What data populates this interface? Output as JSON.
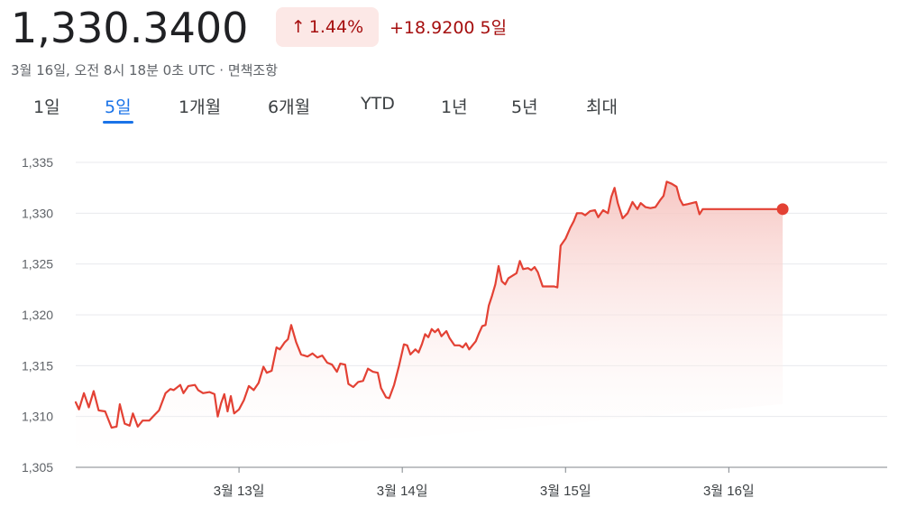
{
  "header": {
    "price": "1,330.3400",
    "pct_change": "1.44%",
    "pct_arrow_icon": "arrow-up-icon",
    "abs_change": "+18.9200",
    "period_label": "5일",
    "meta_text": "3월 16일, 오전 8시 18분 0초 UTC · 면책조항"
  },
  "tabs": [
    {
      "label": "1일",
      "active": false
    },
    {
      "label": "5일",
      "active": true
    },
    {
      "label": "1개월",
      "active": false
    },
    {
      "label": "6개월",
      "active": false
    },
    {
      "label": "YTD",
      "active": false
    },
    {
      "label": "1년",
      "active": false
    },
    {
      "label": "5년",
      "active": false
    },
    {
      "label": "최대",
      "active": false
    }
  ],
  "colors": {
    "line": "#e34134",
    "fill_top": "#f6c4c0",
    "accent": "#1a73e8",
    "negative_text": "#a50e0e"
  },
  "chart_data": {
    "type": "area",
    "title": "",
    "xlabel": "",
    "ylabel": "",
    "ylim": [
      1305,
      1335
    ],
    "yticks": [
      1305,
      1310,
      1315,
      1320,
      1325,
      1330,
      1335
    ],
    "ytick_labels": [
      "1,305",
      "1,310",
      "1,315",
      "1,320",
      "1,325",
      "1,330",
      "1,335"
    ],
    "x_tick_positions": [
      1,
      2,
      3,
      4
    ],
    "x_tick_labels": [
      "3월 13일",
      "3월 14일",
      "3월 15일",
      "3월 16일"
    ],
    "grid": true,
    "last_point_marker": true,
    "series": [
      {
        "values": [
          [
            0.0,
            1311.4
          ],
          [
            0.02,
            1310.7
          ],
          [
            0.05,
            1312.3
          ],
          [
            0.08,
            1310.9
          ],
          [
            0.11,
            1312.5
          ],
          [
            0.14,
            1310.6
          ],
          [
            0.18,
            1310.5
          ],
          [
            0.22,
            1308.9
          ],
          [
            0.25,
            1309.0
          ],
          [
            0.27,
            1311.2
          ],
          [
            0.3,
            1309.3
          ],
          [
            0.33,
            1309.1
          ],
          [
            0.35,
            1310.3
          ],
          [
            0.38,
            1309.0
          ],
          [
            0.41,
            1309.6
          ],
          [
            0.45,
            1309.6
          ],
          [
            0.48,
            1310.1
          ],
          [
            0.51,
            1310.6
          ],
          [
            0.55,
            1312.3
          ],
          [
            0.58,
            1312.7
          ],
          [
            0.6,
            1312.6
          ],
          [
            0.64,
            1313.1
          ],
          [
            0.66,
            1312.3
          ],
          [
            0.69,
            1313.0
          ],
          [
            0.73,
            1313.1
          ],
          [
            0.75,
            1312.6
          ],
          [
            0.78,
            1312.3
          ],
          [
            0.82,
            1312.4
          ],
          [
            0.85,
            1312.2
          ],
          [
            0.87,
            1310.0
          ],
          [
            0.89,
            1311.3
          ],
          [
            0.91,
            1312.2
          ],
          [
            0.93,
            1310.5
          ],
          [
            0.95,
            1312.0
          ],
          [
            0.97,
            1310.3
          ],
          [
            1.0,
            1310.7
          ],
          [
            1.03,
            1311.6
          ],
          [
            1.06,
            1313.0
          ],
          [
            1.09,
            1312.6
          ],
          [
            1.12,
            1313.3
          ],
          [
            1.15,
            1314.9
          ],
          [
            1.17,
            1314.3
          ],
          [
            1.2,
            1314.5
          ],
          [
            1.23,
            1316.8
          ],
          [
            1.25,
            1316.6
          ],
          [
            1.28,
            1317.3
          ],
          [
            1.3,
            1317.6
          ],
          [
            1.32,
            1319.0
          ],
          [
            1.35,
            1317.3
          ],
          [
            1.38,
            1316.1
          ],
          [
            1.42,
            1315.9
          ],
          [
            1.45,
            1316.2
          ],
          [
            1.48,
            1315.8
          ],
          [
            1.51,
            1316.0
          ],
          [
            1.54,
            1315.3
          ],
          [
            1.57,
            1315.1
          ],
          [
            1.6,
            1314.4
          ],
          [
            1.62,
            1315.2
          ],
          [
            1.65,
            1315.1
          ],
          [
            1.67,
            1313.2
          ],
          [
            1.7,
            1312.9
          ],
          [
            1.73,
            1313.4
          ],
          [
            1.76,
            1313.5
          ],
          [
            1.79,
            1314.7
          ],
          [
            1.82,
            1314.4
          ],
          [
            1.85,
            1314.3
          ],
          [
            1.87,
            1312.8
          ],
          [
            1.9,
            1311.9
          ],
          [
            1.92,
            1311.8
          ],
          [
            1.95,
            1313.1
          ],
          [
            1.98,
            1315.0
          ],
          [
            2.01,
            1317.1
          ],
          [
            2.03,
            1317.0
          ],
          [
            2.05,
            1316.1
          ],
          [
            2.08,
            1316.6
          ],
          [
            2.1,
            1316.3
          ],
          [
            2.12,
            1317.1
          ],
          [
            2.14,
            1318.1
          ],
          [
            2.16,
            1317.8
          ],
          [
            2.18,
            1318.6
          ],
          [
            2.2,
            1318.3
          ],
          [
            2.22,
            1318.6
          ],
          [
            2.24,
            1317.9
          ],
          [
            2.27,
            1318.4
          ],
          [
            2.29,
            1317.7
          ],
          [
            2.32,
            1317.0
          ],
          [
            2.35,
            1317.0
          ],
          [
            2.37,
            1316.8
          ],
          [
            2.39,
            1317.2
          ],
          [
            2.41,
            1316.6
          ],
          [
            2.43,
            1317.0
          ],
          [
            2.45,
            1317.4
          ],
          [
            2.47,
            1318.2
          ],
          [
            2.49,
            1318.9
          ],
          [
            2.51,
            1319.0
          ],
          [
            2.53,
            1320.9
          ],
          [
            2.55,
            1321.9
          ],
          [
            2.57,
            1323.0
          ],
          [
            2.59,
            1324.8
          ],
          [
            2.61,
            1323.3
          ],
          [
            2.63,
            1323.0
          ],
          [
            2.65,
            1323.6
          ],
          [
            2.67,
            1323.8
          ],
          [
            2.7,
            1324.1
          ],
          [
            2.72,
            1325.3
          ],
          [
            2.74,
            1324.5
          ],
          [
            2.77,
            1324.6
          ],
          [
            2.79,
            1324.4
          ],
          [
            2.81,
            1324.7
          ],
          [
            2.83,
            1324.2
          ],
          [
            2.86,
            1322.8
          ],
          [
            2.89,
            1322.8
          ],
          [
            2.93,
            1322.8
          ],
          [
            2.95,
            1322.7
          ],
          [
            2.97,
            1326.8
          ],
          [
            3.0,
            1327.5
          ],
          [
            3.03,
            1328.6
          ],
          [
            3.05,
            1329.2
          ],
          [
            3.07,
            1330.0
          ],
          [
            3.1,
            1330.0
          ],
          [
            3.12,
            1329.8
          ],
          [
            3.15,
            1330.2
          ],
          [
            3.18,
            1330.3
          ],
          [
            3.2,
            1329.6
          ],
          [
            3.23,
            1330.3
          ],
          [
            3.26,
            1330.0
          ],
          [
            3.28,
            1331.6
          ],
          [
            3.3,
            1332.5
          ],
          [
            3.32,
            1331.0
          ],
          [
            3.35,
            1329.5
          ],
          [
            3.38,
            1330.0
          ],
          [
            3.41,
            1331.1
          ],
          [
            3.44,
            1330.4
          ],
          [
            3.46,
            1331.0
          ],
          [
            3.49,
            1330.6
          ],
          [
            3.52,
            1330.5
          ],
          [
            3.55,
            1330.6
          ],
          [
            3.58,
            1331.3
          ],
          [
            3.6,
            1331.7
          ],
          [
            3.62,
            1333.1
          ],
          [
            3.65,
            1332.9
          ],
          [
            3.68,
            1332.6
          ],
          [
            3.7,
            1331.4
          ],
          [
            3.72,
            1330.8
          ],
          [
            3.75,
            1330.9
          ],
          [
            3.8,
            1331.1
          ],
          [
            3.82,
            1329.9
          ],
          [
            3.84,
            1330.4
          ],
          [
            3.9,
            1330.4
          ],
          [
            4.0,
            1330.4
          ],
          [
            4.1,
            1330.4
          ],
          [
            4.2,
            1330.4
          ],
          [
            4.33,
            1330.4
          ]
        ]
      }
    ]
  }
}
